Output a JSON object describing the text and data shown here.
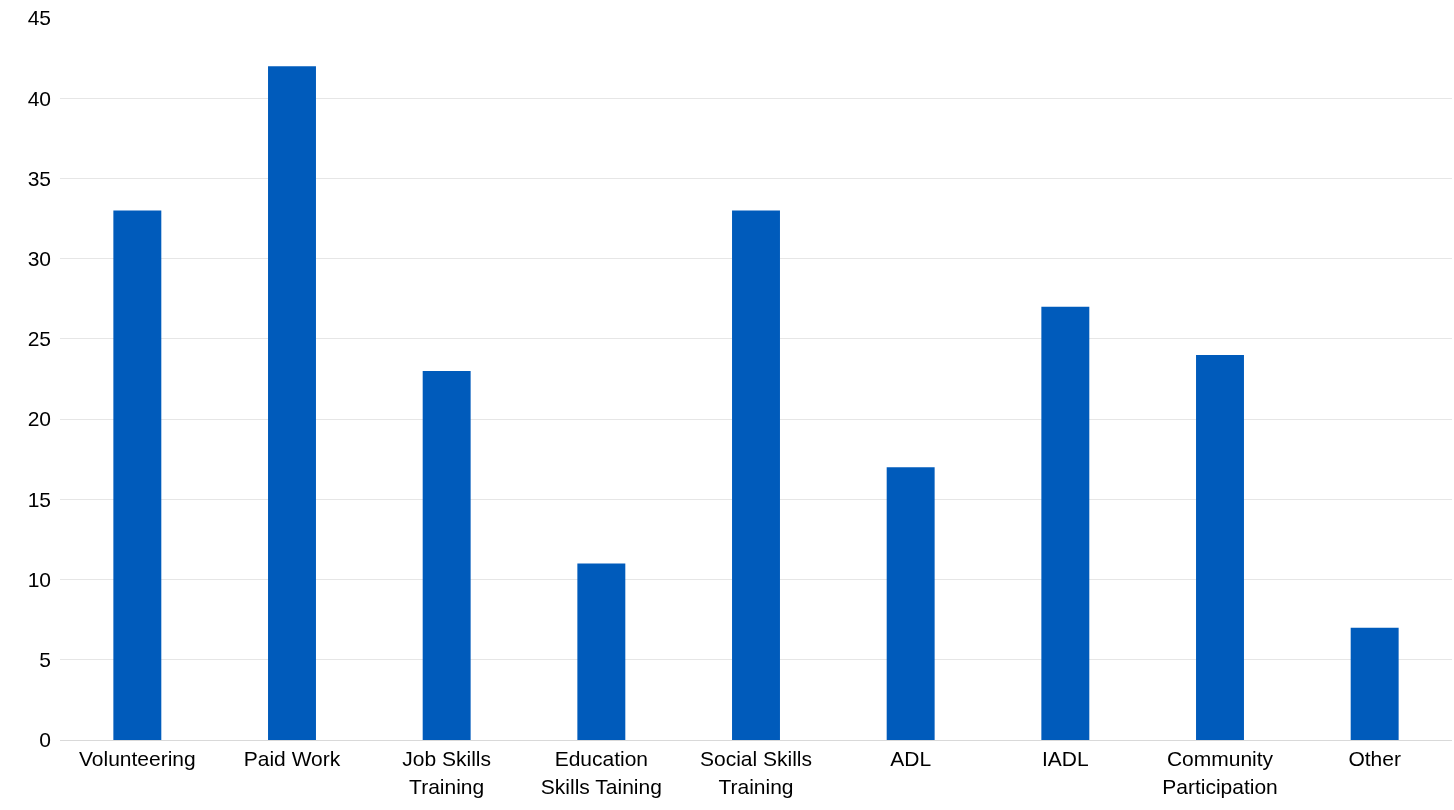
{
  "chart_data": {
    "type": "bar",
    "categories": [
      "Volunteering",
      "Paid Work",
      "Job Skills Training",
      "Education Skills Taining",
      "Social Skills Training",
      "ADL",
      "IADL",
      "Community Participation",
      "Other"
    ],
    "values": [
      33,
      42,
      23,
      11,
      33,
      17,
      27,
      24,
      7
    ],
    "color": "#005bbb",
    "ylim": [
      0,
      45
    ],
    "yticks": [
      0,
      5,
      10,
      15,
      20,
      25,
      30,
      35,
      40,
      45
    ],
    "grid": "y"
  }
}
